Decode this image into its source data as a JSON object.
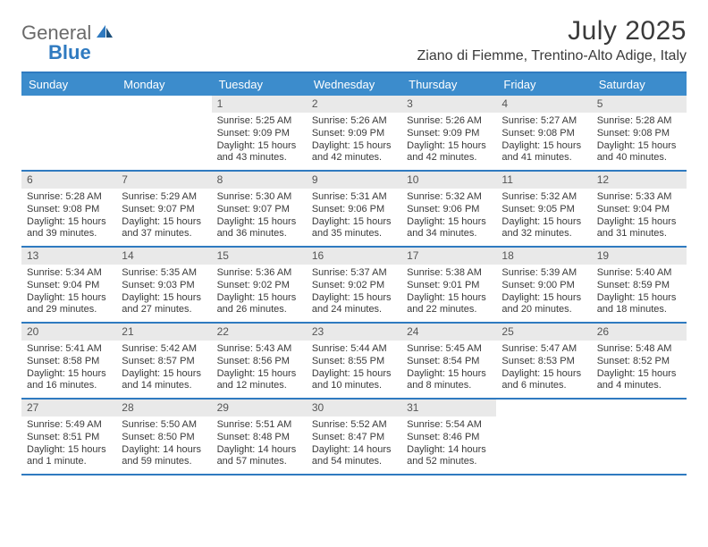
{
  "brand": {
    "name": "General",
    "sub": "Blue",
    "logo_color": "#2f7ac0",
    "text_color": "#6a6a6a"
  },
  "title": "July 2025",
  "location": "Ziano di Fiemme, Trentino-Alto Adige, Italy",
  "colors": {
    "header_bg": "#3c8ccc",
    "header_border": "#2f7ac0",
    "daynum_bg": "#e9e9e9",
    "text": "#3a3a3a"
  },
  "day_names": [
    "Sunday",
    "Monday",
    "Tuesday",
    "Wednesday",
    "Thursday",
    "Friday",
    "Saturday"
  ],
  "weeks": [
    [
      {
        "n": "",
        "sunrise": "",
        "sunset": "",
        "daylight": ""
      },
      {
        "n": "",
        "sunrise": "",
        "sunset": "",
        "daylight": ""
      },
      {
        "n": "1",
        "sunrise": "Sunrise: 5:25 AM",
        "sunset": "Sunset: 9:09 PM",
        "daylight": "Daylight: 15 hours and 43 minutes."
      },
      {
        "n": "2",
        "sunrise": "Sunrise: 5:26 AM",
        "sunset": "Sunset: 9:09 PM",
        "daylight": "Daylight: 15 hours and 42 minutes."
      },
      {
        "n": "3",
        "sunrise": "Sunrise: 5:26 AM",
        "sunset": "Sunset: 9:09 PM",
        "daylight": "Daylight: 15 hours and 42 minutes."
      },
      {
        "n": "4",
        "sunrise": "Sunrise: 5:27 AM",
        "sunset": "Sunset: 9:08 PM",
        "daylight": "Daylight: 15 hours and 41 minutes."
      },
      {
        "n": "5",
        "sunrise": "Sunrise: 5:28 AM",
        "sunset": "Sunset: 9:08 PM",
        "daylight": "Daylight: 15 hours and 40 minutes."
      }
    ],
    [
      {
        "n": "6",
        "sunrise": "Sunrise: 5:28 AM",
        "sunset": "Sunset: 9:08 PM",
        "daylight": "Daylight: 15 hours and 39 minutes."
      },
      {
        "n": "7",
        "sunrise": "Sunrise: 5:29 AM",
        "sunset": "Sunset: 9:07 PM",
        "daylight": "Daylight: 15 hours and 37 minutes."
      },
      {
        "n": "8",
        "sunrise": "Sunrise: 5:30 AM",
        "sunset": "Sunset: 9:07 PM",
        "daylight": "Daylight: 15 hours and 36 minutes."
      },
      {
        "n": "9",
        "sunrise": "Sunrise: 5:31 AM",
        "sunset": "Sunset: 9:06 PM",
        "daylight": "Daylight: 15 hours and 35 minutes."
      },
      {
        "n": "10",
        "sunrise": "Sunrise: 5:32 AM",
        "sunset": "Sunset: 9:06 PM",
        "daylight": "Daylight: 15 hours and 34 minutes."
      },
      {
        "n": "11",
        "sunrise": "Sunrise: 5:32 AM",
        "sunset": "Sunset: 9:05 PM",
        "daylight": "Daylight: 15 hours and 32 minutes."
      },
      {
        "n": "12",
        "sunrise": "Sunrise: 5:33 AM",
        "sunset": "Sunset: 9:04 PM",
        "daylight": "Daylight: 15 hours and 31 minutes."
      }
    ],
    [
      {
        "n": "13",
        "sunrise": "Sunrise: 5:34 AM",
        "sunset": "Sunset: 9:04 PM",
        "daylight": "Daylight: 15 hours and 29 minutes."
      },
      {
        "n": "14",
        "sunrise": "Sunrise: 5:35 AM",
        "sunset": "Sunset: 9:03 PM",
        "daylight": "Daylight: 15 hours and 27 minutes."
      },
      {
        "n": "15",
        "sunrise": "Sunrise: 5:36 AM",
        "sunset": "Sunset: 9:02 PM",
        "daylight": "Daylight: 15 hours and 26 minutes."
      },
      {
        "n": "16",
        "sunrise": "Sunrise: 5:37 AM",
        "sunset": "Sunset: 9:02 PM",
        "daylight": "Daylight: 15 hours and 24 minutes."
      },
      {
        "n": "17",
        "sunrise": "Sunrise: 5:38 AM",
        "sunset": "Sunset: 9:01 PM",
        "daylight": "Daylight: 15 hours and 22 minutes."
      },
      {
        "n": "18",
        "sunrise": "Sunrise: 5:39 AM",
        "sunset": "Sunset: 9:00 PM",
        "daylight": "Daylight: 15 hours and 20 minutes."
      },
      {
        "n": "19",
        "sunrise": "Sunrise: 5:40 AM",
        "sunset": "Sunset: 8:59 PM",
        "daylight": "Daylight: 15 hours and 18 minutes."
      }
    ],
    [
      {
        "n": "20",
        "sunrise": "Sunrise: 5:41 AM",
        "sunset": "Sunset: 8:58 PM",
        "daylight": "Daylight: 15 hours and 16 minutes."
      },
      {
        "n": "21",
        "sunrise": "Sunrise: 5:42 AM",
        "sunset": "Sunset: 8:57 PM",
        "daylight": "Daylight: 15 hours and 14 minutes."
      },
      {
        "n": "22",
        "sunrise": "Sunrise: 5:43 AM",
        "sunset": "Sunset: 8:56 PM",
        "daylight": "Daylight: 15 hours and 12 minutes."
      },
      {
        "n": "23",
        "sunrise": "Sunrise: 5:44 AM",
        "sunset": "Sunset: 8:55 PM",
        "daylight": "Daylight: 15 hours and 10 minutes."
      },
      {
        "n": "24",
        "sunrise": "Sunrise: 5:45 AM",
        "sunset": "Sunset: 8:54 PM",
        "daylight": "Daylight: 15 hours and 8 minutes."
      },
      {
        "n": "25",
        "sunrise": "Sunrise: 5:47 AM",
        "sunset": "Sunset: 8:53 PM",
        "daylight": "Daylight: 15 hours and 6 minutes."
      },
      {
        "n": "26",
        "sunrise": "Sunrise: 5:48 AM",
        "sunset": "Sunset: 8:52 PM",
        "daylight": "Daylight: 15 hours and 4 minutes."
      }
    ],
    [
      {
        "n": "27",
        "sunrise": "Sunrise: 5:49 AM",
        "sunset": "Sunset: 8:51 PM",
        "daylight": "Daylight: 15 hours and 1 minute."
      },
      {
        "n": "28",
        "sunrise": "Sunrise: 5:50 AM",
        "sunset": "Sunset: 8:50 PM",
        "daylight": "Daylight: 14 hours and 59 minutes."
      },
      {
        "n": "29",
        "sunrise": "Sunrise: 5:51 AM",
        "sunset": "Sunset: 8:48 PM",
        "daylight": "Daylight: 14 hours and 57 minutes."
      },
      {
        "n": "30",
        "sunrise": "Sunrise: 5:52 AM",
        "sunset": "Sunset: 8:47 PM",
        "daylight": "Daylight: 14 hours and 54 minutes."
      },
      {
        "n": "31",
        "sunrise": "Sunrise: 5:54 AM",
        "sunset": "Sunset: 8:46 PM",
        "daylight": "Daylight: 14 hours and 52 minutes."
      },
      {
        "n": "",
        "sunrise": "",
        "sunset": "",
        "daylight": ""
      },
      {
        "n": "",
        "sunrise": "",
        "sunset": "",
        "daylight": ""
      }
    ]
  ]
}
